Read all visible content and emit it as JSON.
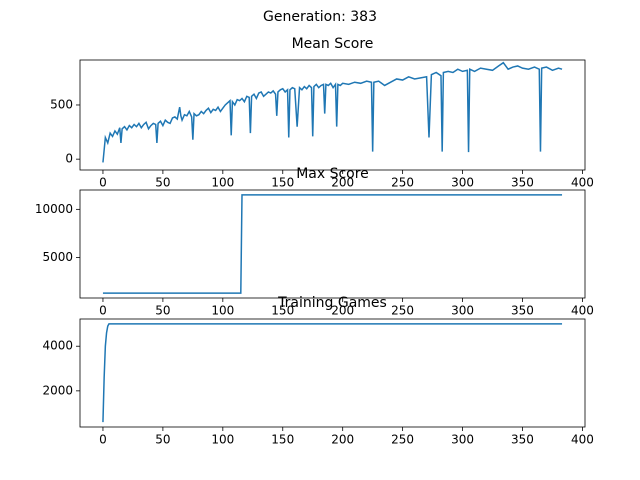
{
  "title": "Generation: 383",
  "chart_data": [
    {
      "type": "line",
      "title": "Mean Score",
      "color": "#1f77b4",
      "x": [
        0,
        2,
        4,
        6,
        8,
        10,
        12,
        14,
        15,
        16,
        18,
        20,
        22,
        24,
        26,
        28,
        30,
        32,
        34,
        36,
        38,
        40,
        42,
        44,
        45,
        46,
        48,
        50,
        52,
        54,
        56,
        58,
        60,
        62,
        64,
        65,
        66,
        68,
        70,
        72,
        74,
        75,
        76,
        78,
        80,
        82,
        84,
        86,
        88,
        90,
        92,
        94,
        96,
        98,
        100,
        102,
        104,
        106,
        107,
        108,
        110,
        112,
        114,
        116,
        118,
        120,
        122,
        123,
        124,
        126,
        128,
        130,
        132,
        134,
        136,
        138,
        140,
        142,
        144,
        145,
        146,
        148,
        150,
        152,
        154,
        155,
        156,
        158,
        160,
        162,
        164,
        166,
        168,
        170,
        172,
        174,
        175,
        176,
        178,
        180,
        182,
        184,
        185,
        186,
        188,
        190,
        192,
        194,
        195,
        196,
        198,
        200,
        205,
        210,
        215,
        220,
        224,
        225,
        226,
        230,
        235,
        240,
        245,
        250,
        255,
        260,
        265,
        270,
        272,
        274,
        278,
        282,
        283,
        284,
        288,
        292,
        296,
        300,
        304,
        305,
        306,
        310,
        315,
        320,
        325,
        330,
        334,
        338,
        342,
        346,
        350,
        355,
        360,
        364,
        365,
        366,
        370,
        375,
        380,
        383
      ],
      "values": [
        -30,
        200,
        150,
        240,
        210,
        260,
        230,
        290,
        150,
        280,
        300,
        270,
        310,
        290,
        320,
        300,
        330,
        290,
        320,
        340,
        280,
        310,
        330,
        320,
        150,
        330,
        350,
        310,
        360,
        340,
        330,
        380,
        390,
        370,
        480,
        400,
        360,
        410,
        400,
        440,
        390,
        180,
        420,
        400,
        410,
        440,
        420,
        450,
        470,
        430,
        460,
        450,
        480,
        440,
        470,
        500,
        520,
        540,
        220,
        530,
        500,
        550,
        540,
        560,
        530,
        580,
        570,
        240,
        580,
        600,
        560,
        610,
        620,
        580,
        600,
        620,
        610,
        630,
        600,
        400,
        620,
        640,
        650,
        620,
        640,
        200,
        640,
        660,
        650,
        300,
        660,
        640,
        670,
        650,
        680,
        660,
        210,
        670,
        690,
        660,
        680,
        690,
        420,
        690,
        680,
        700,
        660,
        690,
        300,
        690,
        680,
        700,
        690,
        710,
        700,
        720,
        710,
        70,
        710,
        720,
        680,
        710,
        740,
        730,
        760,
        740,
        750,
        760,
        200,
        780,
        800,
        770,
        70,
        800,
        810,
        800,
        830,
        810,
        820,
        65,
        830,
        810,
        840,
        830,
        820,
        860,
        890,
        830,
        850,
        860,
        840,
        830,
        850,
        830,
        70,
        840,
        850,
        820,
        840,
        830
      ],
      "xlim": [
        -19.15,
        402.15
      ],
      "ylim": [
        -100,
        915
      ],
      "xticks": [
        0,
        50,
        100,
        150,
        200,
        250,
        300,
        350,
        400
      ],
      "yticks": [
        0,
        500
      ]
    },
    {
      "type": "line",
      "title": "Max Score",
      "color": "#1f77b4",
      "x": [
        0,
        115,
        116,
        383
      ],
      "values": [
        1300,
        1300,
        11500,
        11500
      ],
      "xlim": [
        -19.15,
        402.15
      ],
      "ylim": [
        790,
        12010
      ],
      "xticks": [
        0,
        50,
        100,
        150,
        200,
        250,
        300,
        350,
        400
      ],
      "yticks": [
        5000,
        10000
      ]
    },
    {
      "type": "line",
      "title": "Training Games",
      "color": "#1f77b4",
      "x": [
        0,
        1,
        2,
        3,
        4,
        5,
        6,
        383
      ],
      "values": [
        600,
        2600,
        4000,
        4600,
        4900,
        5000,
        5000,
        5000
      ],
      "xlim": [
        -19.15,
        402.15
      ],
      "ylim": [
        380,
        5220
      ],
      "xticks": [
        0,
        50,
        100,
        150,
        200,
        250,
        300,
        350,
        400
      ],
      "yticks": [
        2000,
        4000
      ]
    }
  ]
}
